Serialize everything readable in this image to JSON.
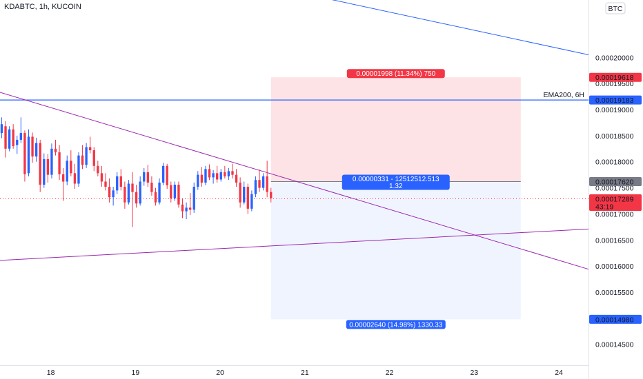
{
  "header": {
    "symbol_line": "KDABTC, 1h, KUCOIN"
  },
  "currency_badge": "BTC",
  "chart_data": {
    "type": "candlestick",
    "title": "KDABTC, 1h, KUCOIN",
    "currency": "BTC",
    "y_range": [
      0.000141,
      0.000211
    ],
    "x_range": [
      17.4,
      24.35
    ],
    "y_ticks": [
      "0.00020000",
      "0.00019500",
      "0.00019000",
      "0.00018500",
      "0.00018000",
      "0.00017500",
      "0.00017000",
      "0.00016500",
      "0.00016000",
      "0.00015500",
      "0.00015000",
      "0.00014500"
    ],
    "y_tick_values": [
      0.0002,
      0.000195,
      0.00019,
      0.000185,
      0.00018,
      0.000175,
      0.00017,
      0.000165,
      0.00016,
      0.000155,
      0.00015,
      0.000145
    ],
    "x_ticks": [
      "18",
      "19",
      "20",
      "21",
      "22",
      "23",
      "24"
    ],
    "x_tick_values": [
      18,
      19,
      20,
      21,
      22,
      23,
      24
    ],
    "price_labels": [
      {
        "text": "0.00019618",
        "value": 0.00019618,
        "color": "#f23645"
      },
      {
        "text": "0.00019183",
        "value": 0.00019183,
        "color": "#2962ff"
      },
      {
        "text": "0.00017620",
        "value": 0.0001762,
        "color": "#787b86"
      },
      {
        "text": "0.00017289",
        "value": 0.00017289,
        "color": "#f23645",
        "sub": "43:19"
      },
      {
        "text": "0.00014980",
        "value": 0.0001498,
        "color": "#2962ff"
      }
    ],
    "ema": {
      "label": "EMA200, 6H",
      "value": 0.00019183,
      "color": "#2962ff"
    },
    "trendlines": [
      {
        "name": "descending-resistance",
        "color": "#9c27b0",
        "from": [
          17.4,
          0.0001933
        ],
        "to": [
          24.35,
          0.0001594
        ]
      },
      {
        "name": "ascending-support",
        "color": "#9c27b0",
        "from": [
          17.4,
          0.0001611
        ],
        "to": [
          24.35,
          0.0001671
        ]
      },
      {
        "name": "blue-diagonal",
        "color": "#2962ff",
        "from": [
          21.05,
          0.000212
        ],
        "to": [
          24.35,
          0.0002005
        ]
      }
    ],
    "position": {
      "x_start": 20.6,
      "x_end": 23.55,
      "entry": 0.0001762,
      "target": 0.00019618,
      "stop": 0.0001498,
      "target_label": "0.00001998 (11.34%) 750",
      "entry_label_line1": "0.00000331 - 12512512.513",
      "entry_label_line2": "1.32",
      "stop_label": "0.00002640 (14.98%) 1330.33"
    },
    "current_price": 0.00017289,
    "candles": [
      {
        "o": 0.0001855,
        "h": 0.0001885,
        "l": 0.0001845,
        "c": 0.0001872
      },
      {
        "o": 0.0001868,
        "h": 0.0001878,
        "l": 0.0001808,
        "c": 0.0001825
      },
      {
        "o": 0.0001825,
        "h": 0.0001868,
        "l": 0.000182,
        "c": 0.0001862
      },
      {
        "o": 0.0001862,
        "h": 0.0001872,
        "l": 0.0001825,
        "c": 0.000183
      },
      {
        "o": 0.0001832,
        "h": 0.000185,
        "l": 0.0001815,
        "c": 0.0001842
      },
      {
        "o": 0.0001842,
        "h": 0.0001885,
        "l": 0.0001836,
        "c": 0.0001855
      },
      {
        "o": 0.0001855,
        "h": 0.000186,
        "l": 0.0001762,
        "c": 0.0001776
      },
      {
        "o": 0.0001778,
        "h": 0.0001862,
        "l": 0.0001772,
        "c": 0.0001848
      },
      {
        "o": 0.0001848,
        "h": 0.0001856,
        "l": 0.0001798,
        "c": 0.000181
      },
      {
        "o": 0.000181,
        "h": 0.0001846,
        "l": 0.00018,
        "c": 0.0001836
      },
      {
        "o": 0.0001836,
        "h": 0.0001842,
        "l": 0.0001742,
        "c": 0.0001756
      },
      {
        "o": 0.0001756,
        "h": 0.0001816,
        "l": 0.000175,
        "c": 0.0001805
      },
      {
        "o": 0.0001805,
        "h": 0.0001815,
        "l": 0.000176,
        "c": 0.0001775
      },
      {
        "o": 0.0001775,
        "h": 0.0001835,
        "l": 0.0001768,
        "c": 0.0001825
      },
      {
        "o": 0.0001825,
        "h": 0.0001842,
        "l": 0.0001812,
        "c": 0.0001818
      },
      {
        "o": 0.0001818,
        "h": 0.0001832,
        "l": 0.0001765,
        "c": 0.0001776
      },
      {
        "o": 0.0001776,
        "h": 0.0001788,
        "l": 0.0001725,
        "c": 0.0001762
      },
      {
        "o": 0.0001762,
        "h": 0.0001812,
        "l": 0.0001755,
        "c": 0.0001802
      },
      {
        "o": 0.0001802,
        "h": 0.0001822,
        "l": 0.0001772,
        "c": 0.0001778
      },
      {
        "o": 0.0001778,
        "h": 0.0001796,
        "l": 0.0001748,
        "c": 0.0001758
      },
      {
        "o": 0.0001758,
        "h": 0.0001818,
        "l": 0.0001752,
        "c": 0.0001812
      },
      {
        "o": 0.0001812,
        "h": 0.0001832,
        "l": 0.0001786,
        "c": 0.0001794
      },
      {
        "o": 0.0001794,
        "h": 0.0001836,
        "l": 0.0001788,
        "c": 0.0001828
      },
      {
        "o": 0.0001828,
        "h": 0.0001848,
        "l": 0.0001816,
        "c": 0.0001822
      },
      {
        "o": 0.0001822,
        "h": 0.0001828,
        "l": 0.0001782,
        "c": 0.0001792
      },
      {
        "o": 0.0001792,
        "h": 0.0001802,
        "l": 0.0001772,
        "c": 0.0001778
      },
      {
        "o": 0.0001778,
        "h": 0.0001792,
        "l": 0.0001752,
        "c": 0.0001762
      },
      {
        "o": 0.0001762,
        "h": 0.0001778,
        "l": 0.0001745,
        "c": 0.0001752
      },
      {
        "o": 0.0001752,
        "h": 0.0001768,
        "l": 0.0001722,
        "c": 0.0001732
      },
      {
        "o": 0.0001732,
        "h": 0.0001752,
        "l": 0.0001716,
        "c": 0.0001745
      },
      {
        "o": 0.0001745,
        "h": 0.000178,
        "l": 0.0001738,
        "c": 0.0001772
      },
      {
        "o": 0.0001772,
        "h": 0.0001786,
        "l": 0.0001745,
        "c": 0.0001752
      },
      {
        "o": 0.0001752,
        "h": 0.0001762,
        "l": 0.000171,
        "c": 0.0001722
      },
      {
        "o": 0.0001722,
        "h": 0.0001765,
        "l": 0.0001718,
        "c": 0.0001758
      },
      {
        "o": 0.0001758,
        "h": 0.000178,
        "l": 0.0001675,
        "c": 0.0001742
      },
      {
        "o": 0.0001742,
        "h": 0.0001756,
        "l": 0.0001712,
        "c": 0.000172
      },
      {
        "o": 0.000172,
        "h": 0.0001772,
        "l": 0.0001716,
        "c": 0.0001762
      },
      {
        "o": 0.0001762,
        "h": 0.0001788,
        "l": 0.0001754,
        "c": 0.000178
      },
      {
        "o": 0.000178,
        "h": 0.0001794,
        "l": 0.0001752,
        "c": 0.000176
      },
      {
        "o": 0.000176,
        "h": 0.0001772,
        "l": 0.0001735,
        "c": 0.0001742
      },
      {
        "o": 0.0001742,
        "h": 0.000175,
        "l": 0.0001716,
        "c": 0.0001722
      },
      {
        "o": 0.0001722,
        "h": 0.0001768,
        "l": 0.0001718,
        "c": 0.000176
      },
      {
        "o": 0.000176,
        "h": 0.0001798,
        "l": 0.0001755,
        "c": 0.0001792
      },
      {
        "o": 0.0001792,
        "h": 0.0001796,
        "l": 0.0001748,
        "c": 0.0001755
      },
      {
        "o": 0.0001755,
        "h": 0.0001762,
        "l": 0.0001722,
        "c": 0.000173
      },
      {
        "o": 0.000173,
        "h": 0.0001762,
        "l": 0.0001725,
        "c": 0.0001756
      },
      {
        "o": 0.0001756,
        "h": 0.0001762,
        "l": 0.0001712,
        "c": 0.0001718
      },
      {
        "o": 0.0001718,
        "h": 0.000173,
        "l": 0.0001692,
        "c": 0.0001705
      },
      {
        "o": 0.0001705,
        "h": 0.0001722,
        "l": 0.000169,
        "c": 0.0001712
      },
      {
        "o": 0.0001712,
        "h": 0.000174,
        "l": 0.0001698,
        "c": 0.0001708
      },
      {
        "o": 0.0001708,
        "h": 0.000176,
        "l": 0.0001702,
        "c": 0.0001752
      },
      {
        "o": 0.0001752,
        "h": 0.0001782,
        "l": 0.0001746,
        "c": 0.0001775
      },
      {
        "o": 0.0001775,
        "h": 0.000179,
        "l": 0.0001752,
        "c": 0.000176
      },
      {
        "o": 0.000176,
        "h": 0.0001792,
        "l": 0.0001755,
        "c": 0.0001786
      },
      {
        "o": 0.0001786,
        "h": 0.0001795,
        "l": 0.0001765,
        "c": 0.000177
      },
      {
        "o": 0.000177,
        "h": 0.0001784,
        "l": 0.0001758,
        "c": 0.0001778
      },
      {
        "o": 0.0001778,
        "h": 0.0001792,
        "l": 0.000176,
        "c": 0.0001766
      },
      {
        "o": 0.0001766,
        "h": 0.0001786,
        "l": 0.0001762,
        "c": 0.000178
      },
      {
        "o": 0.000178,
        "h": 0.0001792,
        "l": 0.0001768,
        "c": 0.0001772
      },
      {
        "o": 0.0001772,
        "h": 0.0001788,
        "l": 0.0001765,
        "c": 0.0001782
      },
      {
        "o": 0.0001782,
        "h": 0.0001796,
        "l": 0.0001768,
        "c": 0.0001775
      },
      {
        "o": 0.0001775,
        "h": 0.0001786,
        "l": 0.0001752,
        "c": 0.000176
      },
      {
        "o": 0.000176,
        "h": 0.000177,
        "l": 0.0001712,
        "c": 0.0001722
      },
      {
        "o": 0.0001722,
        "h": 0.0001762,
        "l": 0.0001718,
        "c": 0.0001752
      },
      {
        "o": 0.0001752,
        "h": 0.0001758,
        "l": 0.00017,
        "c": 0.000171
      },
      {
        "o": 0.000171,
        "h": 0.0001745,
        "l": 0.0001705,
        "c": 0.0001738
      },
      {
        "o": 0.0001738,
        "h": 0.0001772,
        "l": 0.0001732,
        "c": 0.0001765
      },
      {
        "o": 0.0001765,
        "h": 0.0001785,
        "l": 0.0001742,
        "c": 0.000175
      },
      {
        "o": 0.000175,
        "h": 0.0001778,
        "l": 0.0001745,
        "c": 0.0001772
      },
      {
        "o": 0.0001772,
        "h": 0.0001802,
        "l": 0.0001732,
        "c": 0.0001742
      },
      {
        "o": 0.0001742,
        "h": 0.000175,
        "l": 0.0001722,
        "c": 0.000173
      }
    ]
  }
}
